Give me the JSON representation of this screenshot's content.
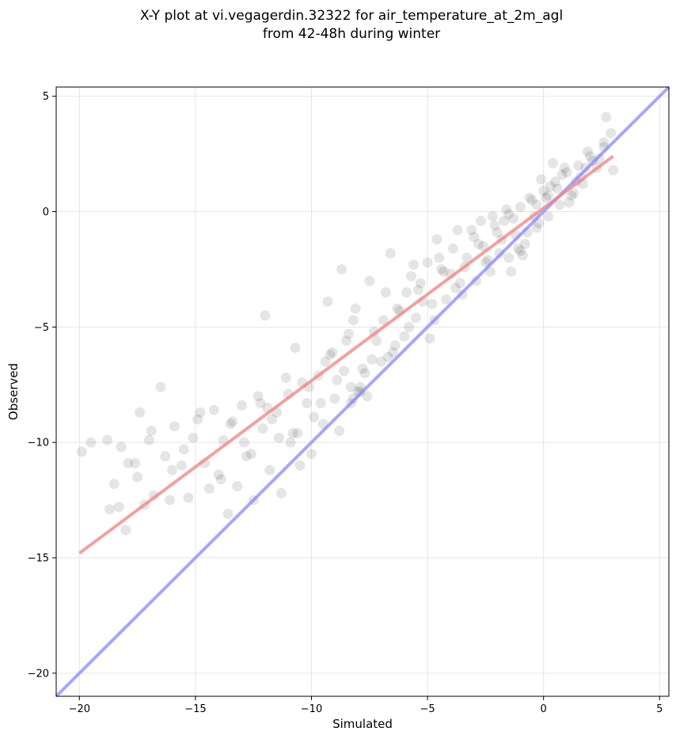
{
  "chart_data": {
    "type": "scatter",
    "title_lines": [
      "X-Y plot at vi.vegagerdin.32322 for air_temperature_at_2m_agl",
      "from 42-48h during winter"
    ],
    "xlabel": "Simulated",
    "ylabel": "Observed",
    "xlim": [
      -21,
      5.4
    ],
    "ylim": [
      -21,
      5.4
    ],
    "x_ticks": [
      -20,
      -15,
      -10,
      -5,
      0,
      5
    ],
    "x_tick_labels": [
      "−20",
      "−15",
      "−10",
      "−5",
      "0",
      "5"
    ],
    "y_ticks": [
      -20,
      -15,
      -10,
      -5,
      0,
      5
    ],
    "y_tick_labels": [
      "−20",
      "−15",
      "−10",
      "−5",
      "0",
      "5"
    ],
    "grid": true,
    "point_color": "#000000",
    "point_alpha": 0.1,
    "fit_line": {
      "color": "#f08080",
      "x": [
        -20,
        3
      ],
      "y": [
        -14.8,
        2.4
      ]
    },
    "identity_line": {
      "color": "#8080ff",
      "x": [
        -21,
        5.4
      ],
      "y": [
        -21,
        5.4
      ]
    },
    "points": {
      "x": [
        -19.9,
        -19.5,
        -18.7,
        -18.8,
        -18.5,
        -18.2,
        -18.0,
        -17.9,
        -17.5,
        -17.4,
        -17.2,
        -17.0,
        -16.8,
        -16.5,
        -16.3,
        -16.1,
        -15.9,
        -15.6,
        -15.3,
        -15.1,
        -14.8,
        -14.6,
        -14.4,
        -14.2,
        -13.9,
        -13.6,
        -13.4,
        -13.2,
        -13.0,
        -12.8,
        -12.5,
        -12.3,
        -12.1,
        -11.8,
        -11.5,
        -11.3,
        -11.0,
        -10.8,
        -10.5,
        -10.2,
        -10.0,
        -9.7,
        -9.5,
        -9.2,
        -9.0,
        -8.8,
        -8.5,
        -8.3,
        -8.1,
        -7.8,
        -7.6,
        -7.3,
        -7.0,
        -6.8,
        -6.5,
        -6.2,
        -6.0,
        -5.7,
        -5.5,
        -5.2,
        -5.0,
        -4.7,
        -4.4,
        -4.2,
        -3.9,
        -3.6,
        -3.4,
        -3.1,
        -2.9,
        -2.6,
        -2.4,
        -2.1,
        -1.9,
        -1.7,
        -1.4,
        -1.2,
        -1.0,
        -0.8,
        -0.5,
        -0.3,
        0.0,
        0.2,
        0.5,
        0.7,
        1.0,
        1.2,
        1.5,
        1.7,
        2.0,
        2.3,
        2.6,
        2.9,
        -18.3,
        -17.6,
        -16.9,
        -16.0,
        -15.5,
        -14.9,
        -14.0,
        -13.5,
        -12.9,
        -12.2,
        -11.7,
        -11.1,
        -10.6,
        -10.1,
        -9.6,
        -9.1,
        -8.6,
        -8.2,
        -7.7,
        -7.2,
        -6.7,
        -6.3,
        -5.8,
        -5.3,
        -4.8,
        -4.3,
        -3.8,
        -3.3,
        -2.8,
        -2.3,
        -1.8,
        -1.3,
        -0.9,
        -0.4,
        0.1,
        0.6,
        1.1,
        1.6,
        2.1,
        2.6,
        -13.8,
        -12.6,
        -11.9,
        -11.4,
        -10.9,
        -10.4,
        -9.9,
        -9.4,
        -8.9,
        -8.4,
        -7.9,
        -7.4,
        -6.9,
        -6.4,
        -5.9,
        -5.4,
        -4.9,
        -4.5,
        -4.0,
        -3.5,
        -3.0,
        -2.5,
        -2.0,
        -1.5,
        -1.1,
        -0.6,
        -0.2,
        0.3,
        0.8,
        1.3,
        1.8,
        2.4,
        -8.0,
        -8.2,
        -7.9,
        -8.3,
        -1.5,
        -1.0,
        -0.7,
        -0.3,
        0.2,
        0.9,
        1.4,
        2.7,
        3.0,
        -12.0,
        -10.7,
        -9.3,
        -8.7,
        -7.5,
        -6.6,
        -5.6,
        -4.6,
        -3.7,
        -2.7,
        -2.2,
        -1.6,
        -0.1,
        0.4,
        1.9
      ],
      "y": [
        -10.4,
        -10.0,
        -12.9,
        -9.9,
        -11.8,
        -10.2,
        -13.8,
        -10.9,
        -11.5,
        -8.7,
        -12.7,
        -9.9,
        -12.3,
        -7.6,
        -10.6,
        -12.5,
        -9.3,
        -11.0,
        -12.4,
        -9.8,
        -8.7,
        -10.9,
        -12.0,
        -8.6,
        -11.6,
        -13.1,
        -9.1,
        -11.9,
        -8.4,
        -10.6,
        -12.5,
        -8.0,
        -9.4,
        -11.2,
        -8.7,
        -12.2,
        -7.9,
        -9.6,
        -11.0,
        -8.3,
        -10.5,
        -7.1,
        -9.2,
        -6.2,
        -8.1,
        -9.5,
        -5.6,
        -7.6,
        -4.2,
        -6.8,
        -8.0,
        -5.2,
        -6.5,
        -3.5,
        -6.1,
        -4.3,
        -5.4,
        -2.8,
        -4.6,
        -3.9,
        -2.2,
        -4.7,
        -2.5,
        -3.8,
        -1.6,
        -3.1,
        -2.4,
        -0.8,
        -3.0,
        -1.5,
        -2.1,
        -0.6,
        -1.8,
        -0.4,
        -2.6,
        -1.0,
        0.2,
        -1.4,
        0.5,
        -0.7,
        0.9,
        -0.2,
        1.3,
        0.3,
        1.7,
        0.7,
        2.0,
        1.2,
        2.4,
        1.9,
        3.0,
        3.4,
        -12.8,
        -10.9,
        -9.5,
        -11.2,
        -10.3,
        -9.0,
        -11.4,
        -9.2,
        -10.0,
        -8.3,
        -9.0,
        -7.2,
        -9.6,
        -7.6,
        -8.3,
        -6.1,
        -6.9,
        -4.7,
        -7.0,
        -5.6,
        -6.3,
        -4.2,
        -5.0,
        -3.1,
        -4.0,
        -2.6,
        -3.3,
        -2.0,
        -1.4,
        -2.6,
        -1.2,
        -0.3,
        -1.9,
        -0.2,
        0.6,
        1.0,
        0.4,
        1.5,
        2.2,
        2.8,
        -9.9,
        -10.5,
        -8.5,
        -9.8,
        -10.0,
        -7.4,
        -8.9,
        -6.5,
        -7.3,
        -5.3,
        -7.8,
        -6.4,
        -4.7,
        -5.8,
        -3.5,
        -3.4,
        -5.5,
        -2.0,
        -2.7,
        -3.6,
        -1.1,
        -2.2,
        -0.9,
        -0.1,
        -1.6,
        0.6,
        -0.5,
        1.1,
        1.6,
        0.8,
        1.9,
        2.3,
        -7.8,
        -8.1,
        -7.6,
        -8.3,
        -2.0,
        -1.7,
        -0.9,
        0.3,
        0.7,
        1.9,
        1.3,
        4.1,
        1.8,
        -4.5,
        -5.9,
        -3.9,
        -2.5,
        -3.0,
        -1.8,
        -2.3,
        -1.2,
        -0.8,
        -0.4,
        -0.2,
        0.1,
        1.4,
        2.1,
        2.6
      ]
    }
  }
}
